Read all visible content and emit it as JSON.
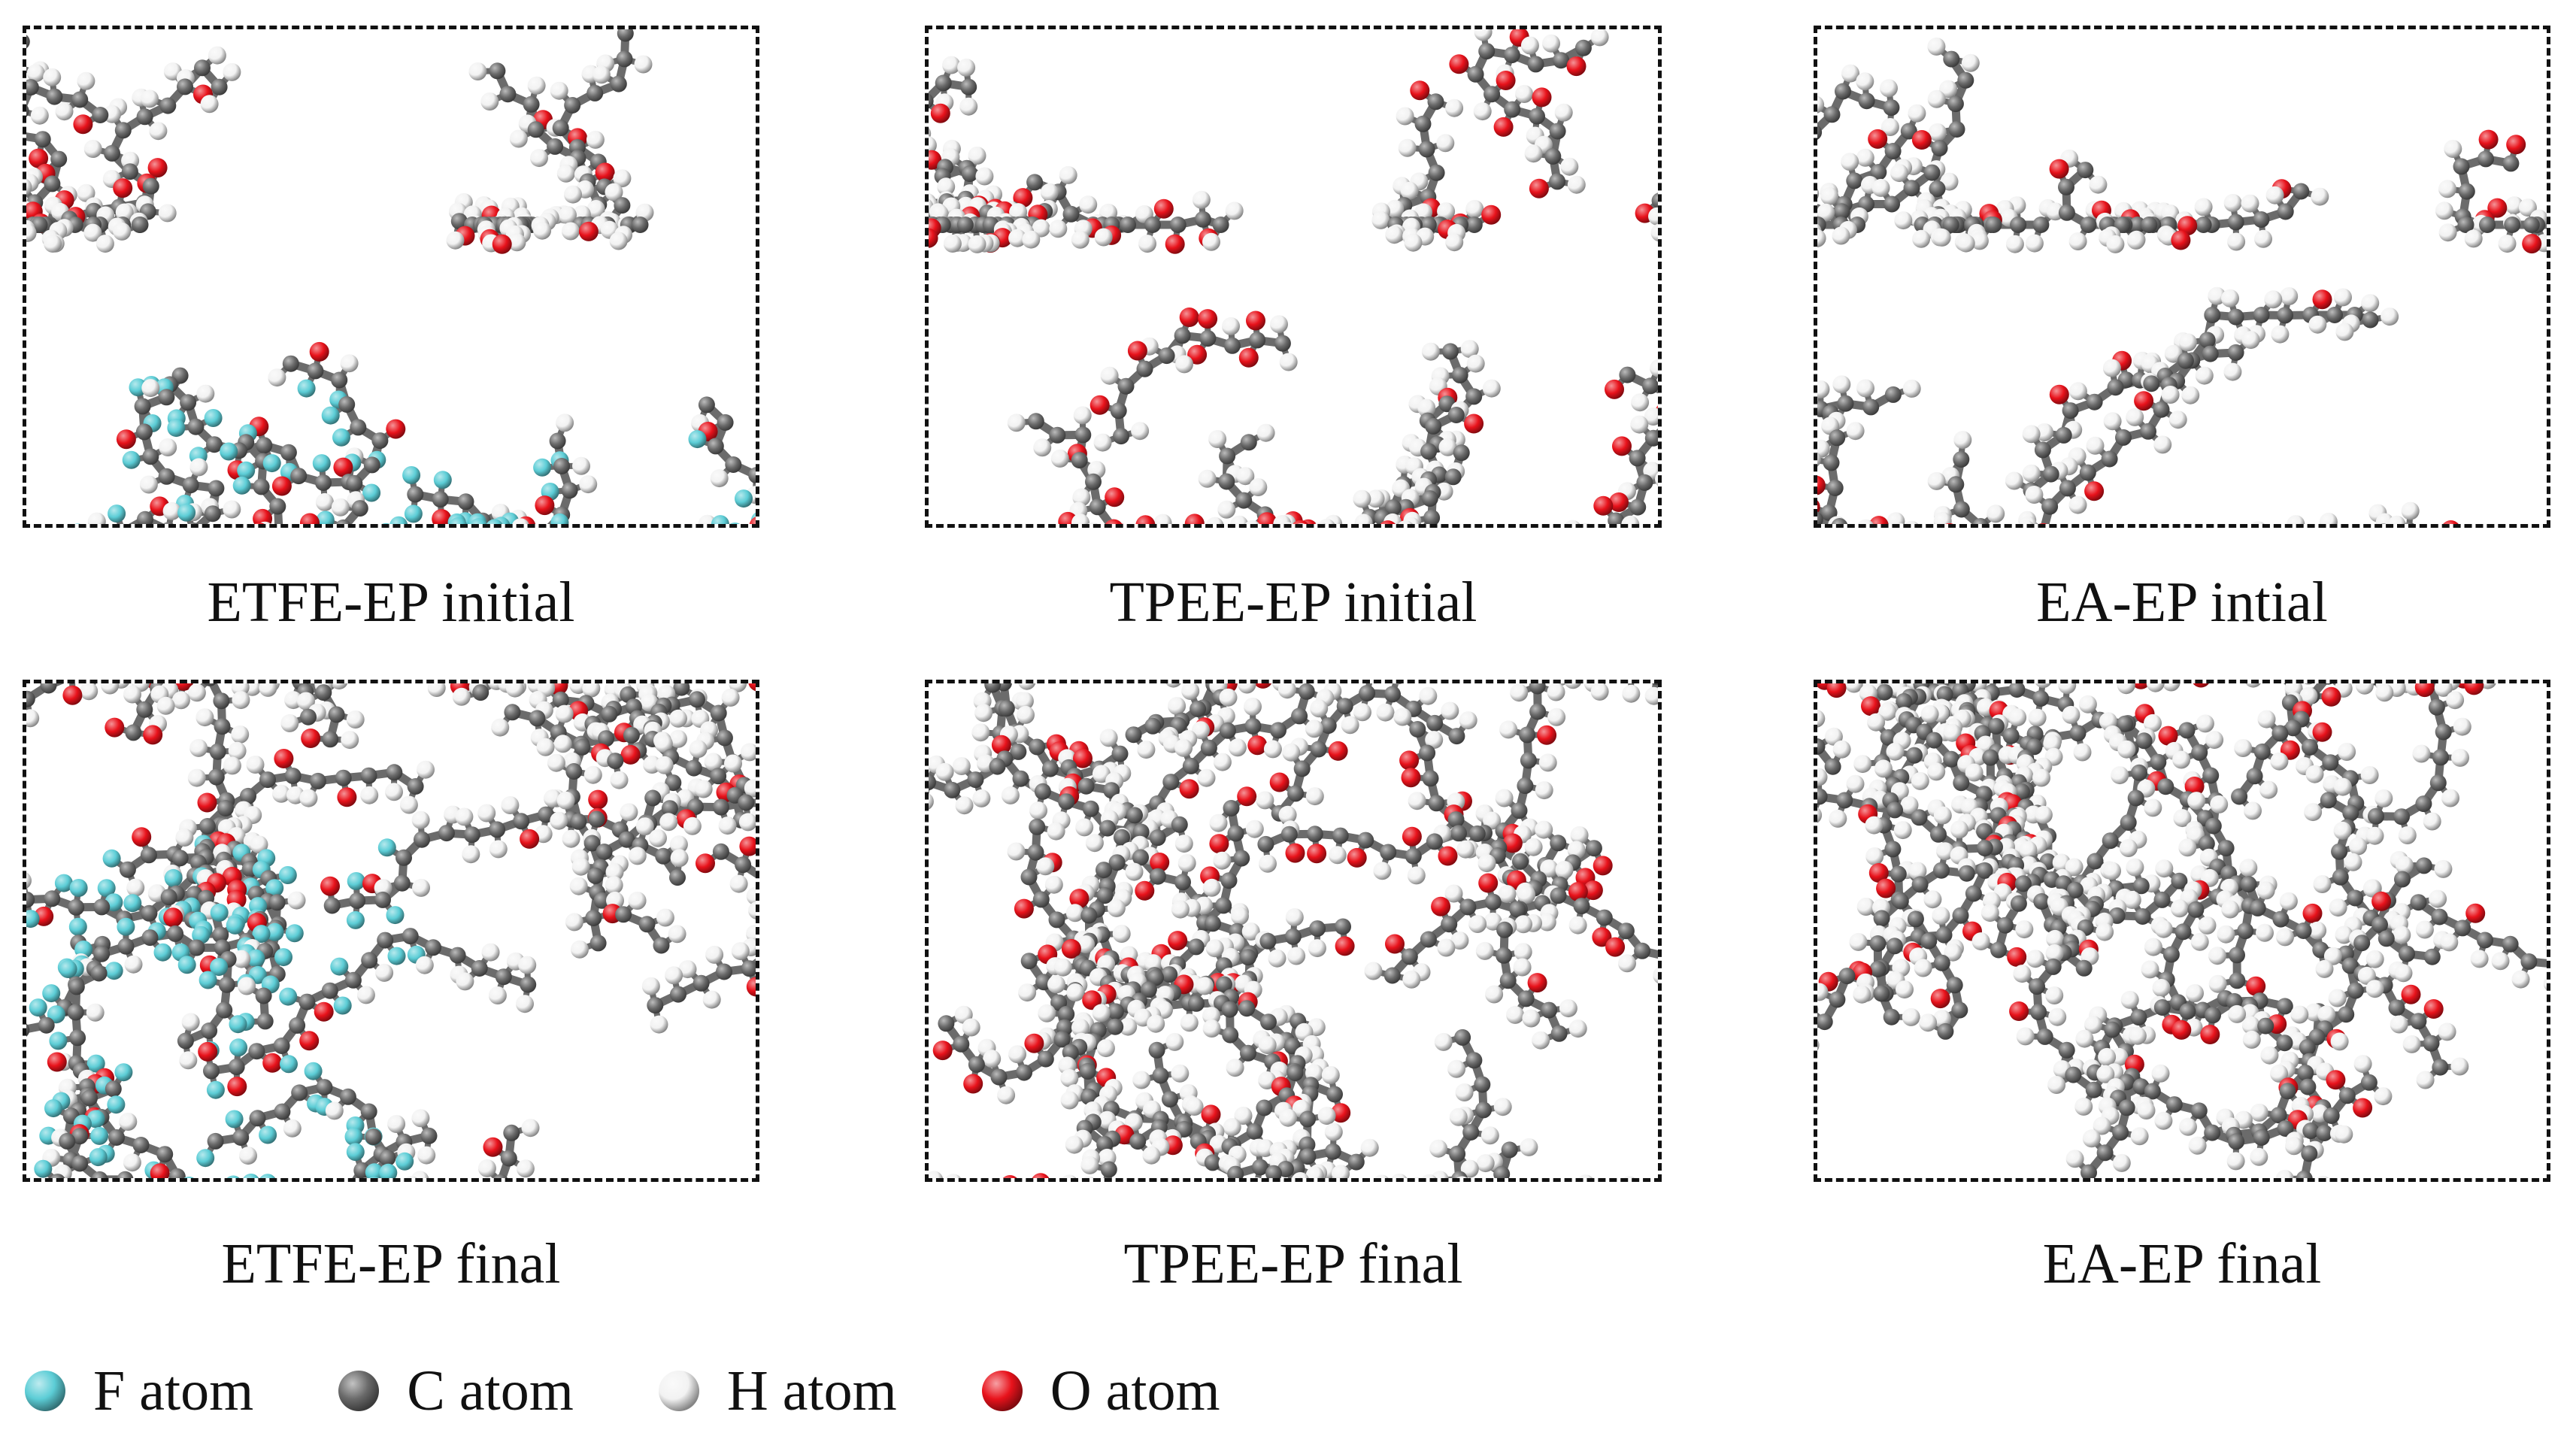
{
  "panels": [
    {
      "id": "etfe-ep-initial",
      "caption": "ETFE-EP initial",
      "atoms": [
        "F",
        "C",
        "H",
        "O"
      ],
      "layout": "two-layers"
    },
    {
      "id": "tpee-ep-initial",
      "caption": "TPEE-EP initial",
      "atoms": [
        "C",
        "H",
        "O"
      ],
      "layout": "two-layers"
    },
    {
      "id": "ea-ep-initial",
      "caption": "EA-EP intial",
      "atoms": [
        "C",
        "H",
        "O"
      ],
      "layout": "two-layers"
    },
    {
      "id": "etfe-ep-final",
      "caption": "ETFE-EP final",
      "atoms": [
        "F",
        "C",
        "H",
        "O"
      ],
      "layout": "mixed"
    },
    {
      "id": "tpee-ep-final",
      "caption": "TPEE-EP final",
      "atoms": [
        "C",
        "H",
        "O"
      ],
      "layout": "mixed"
    },
    {
      "id": "ea-ep-final",
      "caption": "EA-EP final",
      "atoms": [
        "C",
        "H",
        "O"
      ],
      "layout": "mixed"
    }
  ],
  "legend": [
    {
      "key": "F",
      "label": "F atom",
      "color": "#5ccdd6"
    },
    {
      "key": "C",
      "label": "C atom",
      "color": "#6a6a6a"
    },
    {
      "key": "H",
      "label": "H atom",
      "color": "#f2f2f2"
    },
    {
      "key": "O",
      "label": "O atom",
      "color": "#e8121b"
    }
  ],
  "colors": {
    "bond": "#6b6b6b",
    "border": "#111111"
  }
}
